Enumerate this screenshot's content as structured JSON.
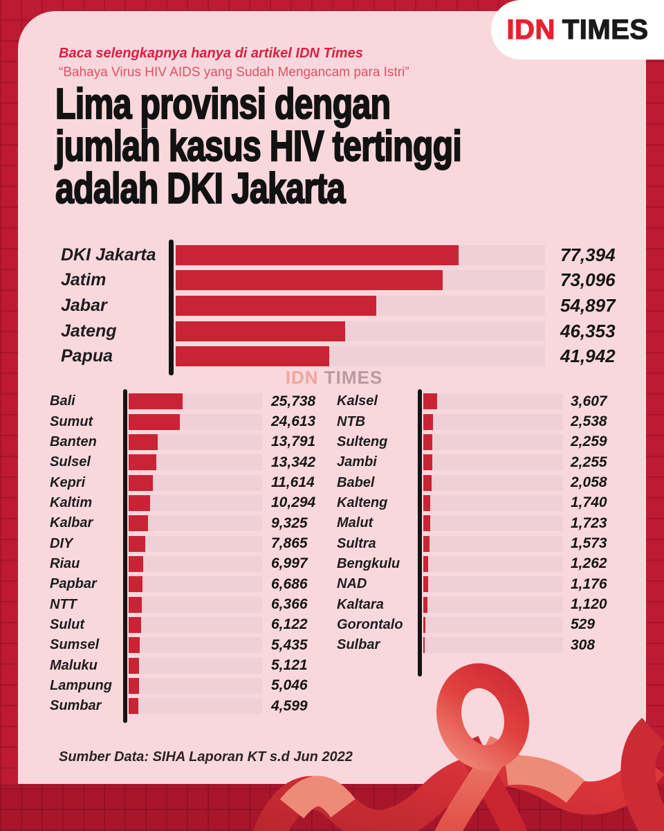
{
  "brand": {
    "idn": "IDN",
    "times": "TIMES"
  },
  "header": {
    "kicker": "Baca selengkapnya hanya di artikel IDN Times",
    "subtitle": "“Bahaya Virus HIV AIDS yang Sudah Mengancam para Istri”",
    "title_lines": [
      "Lima provinsi dengan",
      "jumlah kasus HIV tertinggi",
      "adalah DKI Jakarta"
    ]
  },
  "watermark": {
    "idn": "IDN",
    "times": "TIMES"
  },
  "footer": {
    "source": "Sumber Data: SIHA Laporan KT s.d Jun 2022"
  },
  "colors": {
    "frame_red": "#bd1b33",
    "panel_pink": "#f9d8dd",
    "bar_red": "#c92435",
    "track_pink": "#eed0d6",
    "axis_black": "#141414",
    "kicker_red": "#d91f42",
    "subtitle_red": "#e25062",
    "logo_red": "#e8212e",
    "logo_black": "#1c191b",
    "title_black": "#121212"
  },
  "chart_data": [
    {
      "type": "bar",
      "orientation": "horizontal",
      "title": "Lima provinsi dengan jumlah kasus HIV tertinggi adalah DKI Jakarta",
      "categories": [
        "DKI Jakarta",
        "Jatim",
        "Jabar",
        "Jateng",
        "Papua"
      ],
      "values": [
        77394,
        73096,
        54897,
        46353,
        41942
      ],
      "value_labels": [
        "77,394",
        "73,096",
        "54,897",
        "46,353",
        "41,942"
      ],
      "xlim": [
        0,
        101000
      ],
      "grid": false,
      "legend": "none"
    },
    {
      "type": "bar",
      "orientation": "horizontal",
      "title": "Provinsi lainnya (kolom kiri)",
      "categories": [
        "Bali",
        "Sumut",
        "Banten",
        "Sulsel",
        "Kepri",
        "Kaltim",
        "Kalbar",
        "DIY",
        "Riau",
        "Papbar",
        "NTT",
        "Sulut",
        "Sumsel",
        "Maluku",
        "Lampung",
        "Sumbar"
      ],
      "values": [
        25738,
        24613,
        13791,
        13342,
        11614,
        10294,
        9325,
        7865,
        6997,
        6686,
        6366,
        6122,
        5435,
        5121,
        5046,
        4599
      ],
      "value_labels": [
        "25,738",
        "24,613",
        "13,791",
        "13,342",
        "11,614",
        "10,294",
        "9,325",
        "7,865",
        "6,997",
        "6,686",
        "6,366",
        "6,122",
        "5,435",
        "5,121",
        "5,046",
        "4,599"
      ],
      "xlim": [
        0,
        64000
      ],
      "grid": false,
      "legend": "none"
    },
    {
      "type": "bar",
      "orientation": "horizontal",
      "title": "Provinsi lainnya (kolom kanan)",
      "categories": [
        "Kalsel",
        "NTB",
        "Sulteng",
        "Jambi",
        "Babel",
        "Kalteng",
        "Malut",
        "Sultra",
        "Bengkulu",
        "NAD",
        "Kaltara",
        "Gorontalo",
        "Sulbar"
      ],
      "values": [
        3607,
        2538,
        2259,
        2255,
        2058,
        1740,
        1723,
        1573,
        1262,
        1176,
        1120,
        529,
        308
      ],
      "value_labels": [
        "3,607",
        "2,538",
        "2,259",
        "2,255",
        "2,058",
        "1,740",
        "1,723",
        "1,573",
        "1,262",
        "1,176",
        "1,120",
        "529",
        "308"
      ],
      "xlim": [
        0,
        36000
      ],
      "grid": false,
      "legend": "none"
    }
  ]
}
